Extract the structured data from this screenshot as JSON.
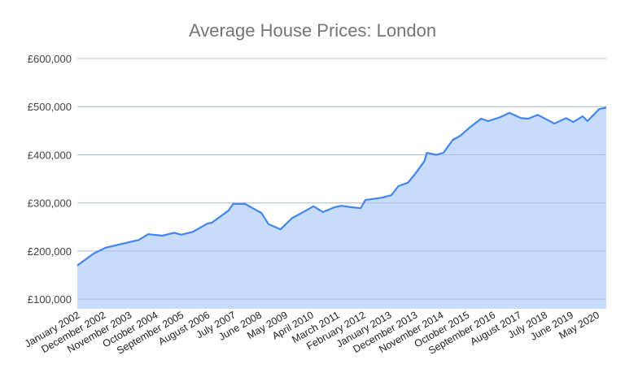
{
  "chart_data": {
    "type": "area",
    "title": "Average House Prices: London",
    "xlabel": "",
    "ylabel": "",
    "ylim": [
      80000,
      600000
    ],
    "y_ticks": [
      100000,
      200000,
      300000,
      400000,
      500000,
      600000
    ],
    "y_tick_labels": [
      "£100,000",
      "£200,000",
      "£300,000",
      "£400,000",
      "£500,000",
      "£600,000"
    ],
    "x_range": [
      "2002-01",
      "2020-09"
    ],
    "x_tick_dates": [
      "2002-01",
      "2002-12",
      "2003-11",
      "2004-10",
      "2005-09",
      "2006-08",
      "2007-07",
      "2008-06",
      "2009-05",
      "2010-04",
      "2011-03",
      "2012-02",
      "2013-01",
      "2013-12",
      "2014-11",
      "2015-10",
      "2016-09",
      "2017-08",
      "2018-07",
      "2019-06",
      "2020-05"
    ],
    "x_tick_labels": [
      "January 2002",
      "December 2002",
      "November 2003",
      "October 2004",
      "September 2005",
      "August 2006",
      "July 2007",
      "June 2008",
      "May 2009",
      "April 2010",
      "March 2011",
      "February 2012",
      "January 2013",
      "December 2013",
      "November 2014",
      "October 2015",
      "September 2016",
      "August 2017",
      "July 2018",
      "June 2019",
      "May 2020"
    ],
    "grid": true,
    "line_color": "#4285f4",
    "fill_color": "#c6dafc",
    "points": [
      [
        "2002-01",
        170000
      ],
      [
        "2002-08",
        195000
      ],
      [
        "2003-01",
        207000
      ],
      [
        "2003-08",
        215000
      ],
      [
        "2004-03",
        223000
      ],
      [
        "2004-07",
        235000
      ],
      [
        "2005-01",
        232000
      ],
      [
        "2005-06",
        238000
      ],
      [
        "2005-09",
        234000
      ],
      [
        "2006-02",
        240000
      ],
      [
        "2006-08",
        257000
      ],
      [
        "2006-10",
        259000
      ],
      [
        "2007-05",
        284000
      ],
      [
        "2007-07",
        298000
      ],
      [
        "2007-12",
        298000
      ],
      [
        "2008-07",
        279000
      ],
      [
        "2008-10",
        256000
      ],
      [
        "2009-03",
        245000
      ],
      [
        "2009-08",
        269000
      ],
      [
        "2009-12",
        279000
      ],
      [
        "2010-05",
        293000
      ],
      [
        "2010-09",
        281000
      ],
      [
        "2011-02",
        291000
      ],
      [
        "2011-05",
        294000
      ],
      [
        "2011-09",
        291000
      ],
      [
        "2012-01",
        289000
      ],
      [
        "2012-03",
        306000
      ],
      [
        "2012-10",
        311000
      ],
      [
        "2013-02",
        316000
      ],
      [
        "2013-05",
        335000
      ],
      [
        "2013-09",
        342000
      ],
      [
        "2013-12",
        360000
      ],
      [
        "2014-04",
        387000
      ],
      [
        "2014-05",
        404000
      ],
      [
        "2014-09",
        400000
      ],
      [
        "2014-12",
        404000
      ],
      [
        "2015-04",
        431000
      ],
      [
        "2015-07",
        439000
      ],
      [
        "2015-11",
        456000
      ],
      [
        "2016-04",
        475000
      ],
      [
        "2016-07",
        470000
      ],
      [
        "2016-12",
        478000
      ],
      [
        "2017-04",
        487000
      ],
      [
        "2017-09",
        476000
      ],
      [
        "2017-12",
        475000
      ],
      [
        "2018-04",
        483000
      ],
      [
        "2018-11",
        465000
      ],
      [
        "2019-04",
        476000
      ],
      [
        "2019-07",
        468000
      ],
      [
        "2019-11",
        480000
      ],
      [
        "2020-01",
        470000
      ],
      [
        "2020-06",
        495000
      ],
      [
        "2020-09",
        498000
      ]
    ]
  }
}
